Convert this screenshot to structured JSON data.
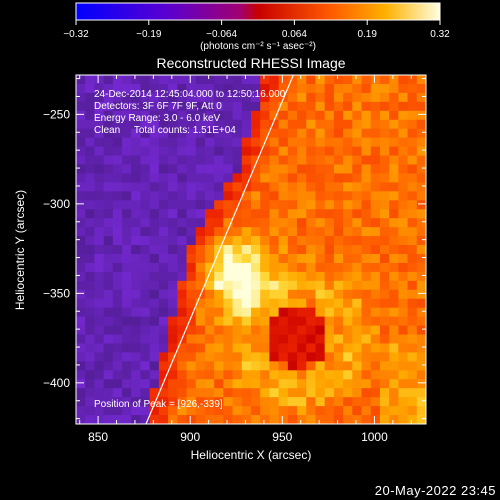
{
  "chart_data": {
    "type": "heatmap",
    "title": "Reconstructed RHESSI Image",
    "xlabel": "Heliocentric X (arcsec)",
    "ylabel": "Heliocentric Y (arcsec)",
    "xlim": [
      838,
      1028
    ],
    "ylim": [
      -423,
      -228
    ],
    "xticks": [
      850,
      900,
      950,
      1000
    ],
    "yticks": [
      -250,
      -300,
      -350,
      -400
    ],
    "colorbar": {
      "label": "(photons cm⁻² s⁻¹ asec⁻²)",
      "range": [
        -0.32,
        0.32
      ],
      "ticks": [
        "−0.32",
        "−0.19",
        "−0.064",
        "0.064",
        "0.19",
        "0.32"
      ],
      "colors": [
        "#0000ff",
        "#7a00d8",
        "#c80000",
        "#ff5a00",
        "#ffb000",
        "#ffff80",
        "#ffffff"
      ]
    },
    "info": [
      "24-Dec-2014 12:45:04.000 to 12:50:16.000",
      "Detectors: 3F 6F 7F 9F, Att 0",
      "Energy Range: 3.0 - 6.0 keV",
      "Clean     Total counts: 1.51E+04"
    ],
    "peak_text": "Position of Peak = [926,-339]",
    "peak": [
      926,
      -339
    ],
    "limb_line": [
      [
        876,
        -423
      ],
      [
        956,
        -228
      ]
    ],
    "background_color": "#6a1fb0",
    "emission": {
      "boundary_x": [
        [
          -228,
          945
        ],
        [
          -280,
          930
        ],
        [
          -320,
          905
        ],
        [
          -360,
          895
        ],
        [
          -400,
          885
        ],
        [
          -423,
          880
        ]
      ],
      "ring_center": [
        958,
        -375
      ],
      "ring_radius": 30
    }
  },
  "timestamp": "20-May-2022 23:45"
}
